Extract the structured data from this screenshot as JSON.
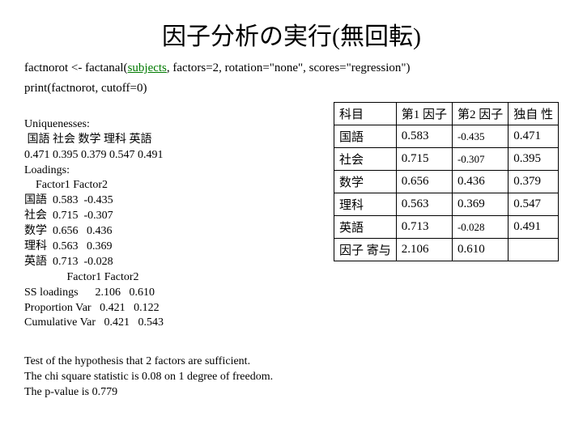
{
  "title": "因子分析の実行(無回転)",
  "code": {
    "line1_pre": "factnorot <- factanal(",
    "line1_kw": "subjects",
    "line1_post": ", factors=2, rotation=\"none\", scores=\"regression\")",
    "line2": "print(factnorot, cutoff=0)"
  },
  "output": {
    "u_label": "Uniquenesses:",
    "u_names": " 国語 社会 数学 理科 英語",
    "u_vals": "0.471 0.395 0.379 0.547 0.491",
    "l_label": "Loadings:",
    "l_header": "    Factor1 Factor2",
    "l_r1": "国語  0.583  -0.435",
    "l_r2": "社会  0.715  -0.307",
    "l_r3": "数学  0.656   0.436",
    "l_r4": "理科  0.563   0.369",
    "l_r5": "英語  0.713  -0.028",
    "s_header": "               Factor1 Factor2",
    "s_r1": "SS loadings      2.106   0.610",
    "s_r2": "Proportion Var   0.421   0.122",
    "s_r3": "Cumulative Var   0.421   0.543"
  },
  "bottom": {
    "l1": "Test of the hypothesis that 2 factors are sufficient.",
    "l2": "The chi square statistic is 0.08 on 1 degree of freedom.",
    "l3": "The p-value is 0.779"
  },
  "table": {
    "headers": {
      "c1": "科目",
      "c2": "第1\n因子",
      "c3": "第2\n因子",
      "c4": "独自\n性"
    },
    "rows": [
      {
        "c1": "国語",
        "c2": "0.583",
        "c3": "-0.435",
        "c4": "0.471"
      },
      {
        "c1": "社会",
        "c2": "0.715",
        "c3": "-0.307",
        "c4": "0.395"
      },
      {
        "c1": "数学",
        "c2": "0.656",
        "c3": "0.436",
        "c4": "0.379"
      },
      {
        "c1": "理科",
        "c2": "0.563",
        "c3": "0.369",
        "c4": "0.547"
      },
      {
        "c1": "英語",
        "c2": "0.713",
        "c3": "-0.028",
        "c4": "0.491"
      },
      {
        "c1": "因子\n寄与",
        "c2": "2.106",
        "c3": "0.610",
        "c4": ""
      }
    ]
  },
  "style": {
    "background": "#ffffff",
    "text_color": "#000000",
    "keyword_color": "#007a00",
    "border_color": "#000000",
    "title_fontsize": 30,
    "body_fontsize": 14,
    "table_fontsize": 15
  }
}
